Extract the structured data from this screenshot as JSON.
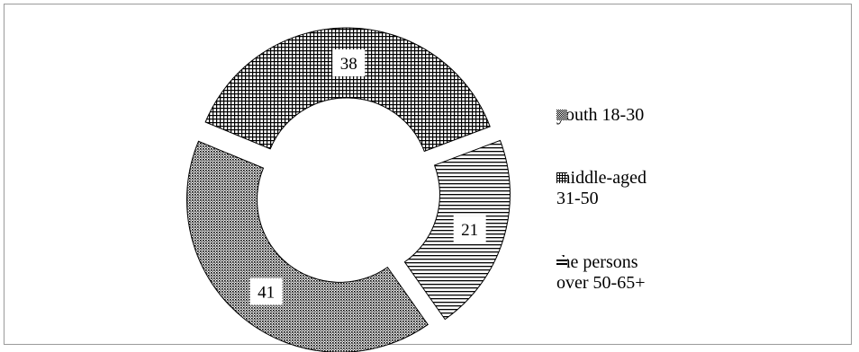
{
  "chart_data": {
    "type": "pie",
    "variant": "donut",
    "title": "",
    "slices": [
      {
        "label": "youth 18-30",
        "value": 38,
        "pattern": "fine-grid",
        "exploded": true
      },
      {
        "label": "middle-aged\n31-50",
        "value": 21,
        "pattern": "horizontal-lines",
        "exploded": true
      },
      {
        "label": "the persons\nover 50-65+",
        "value": 41,
        "pattern": "dots",
        "exploded": true
      }
    ],
    "legend": {
      "position": "right",
      "items": [
        {
          "label": "youth 18-30",
          "pattern": "checker-small"
        },
        {
          "label": "middle-aged\n31-50",
          "pattern": "checker-grid"
        },
        {
          "label": "the persons\nover 50-65+",
          "pattern": "double-line"
        }
      ]
    },
    "data_labels": [
      "38",
      "21",
      "41"
    ],
    "colors": {
      "stroke": "#000000",
      "background": "#ffffff"
    }
  }
}
